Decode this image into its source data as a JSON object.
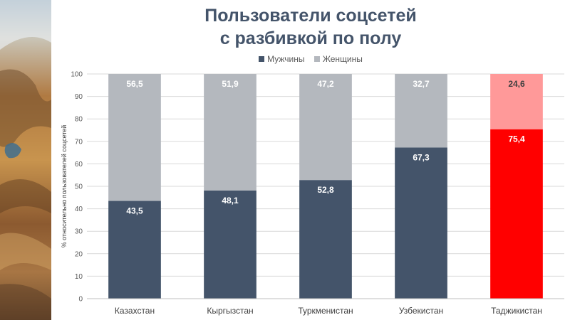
{
  "title_lines": [
    "Пользователи соцсетей",
    "с разбивкой по полу"
  ],
  "legend": [
    {
      "label": "Мужчины",
      "color": "#44546a"
    },
    {
      "label": "Женщины",
      "color": "#b4b8be"
    }
  ],
  "chart_data": {
    "type": "bar",
    "stacked": true,
    "title": "Пользователи соцсетей с разбивкой по полу",
    "ylabel": "% относительно пользователей соцсетей",
    "xlabel": "",
    "ylim": [
      0,
      100
    ],
    "yticks": [
      0,
      10,
      20,
      30,
      40,
      50,
      60,
      70,
      80,
      90,
      100
    ],
    "categories": [
      "Казахстан",
      "Кыргызстан",
      "Туркменистан",
      "Узбекистан",
      "Таджикистан"
    ],
    "series": [
      {
        "name": "Мужчины",
        "color": "#44546a",
        "values": [
          43.5,
          48.1,
          52.8,
          67.3,
          75.4
        ],
        "labels": [
          "43,5",
          "48,1",
          "52,8",
          "67,3",
          "75,4"
        ]
      },
      {
        "name": "Женщины",
        "color": "#b4b8be",
        "values": [
          56.5,
          51.9,
          47.2,
          32.7,
          24.6
        ],
        "labels": [
          "56,5",
          "51,9",
          "47,2",
          "32,7",
          "24,6"
        ]
      }
    ],
    "highlight": {
      "category": "Таджикистан",
      "colors": [
        "#ff0000",
        "#ff9999"
      ]
    },
    "grid": true,
    "legend_position": "top"
  }
}
